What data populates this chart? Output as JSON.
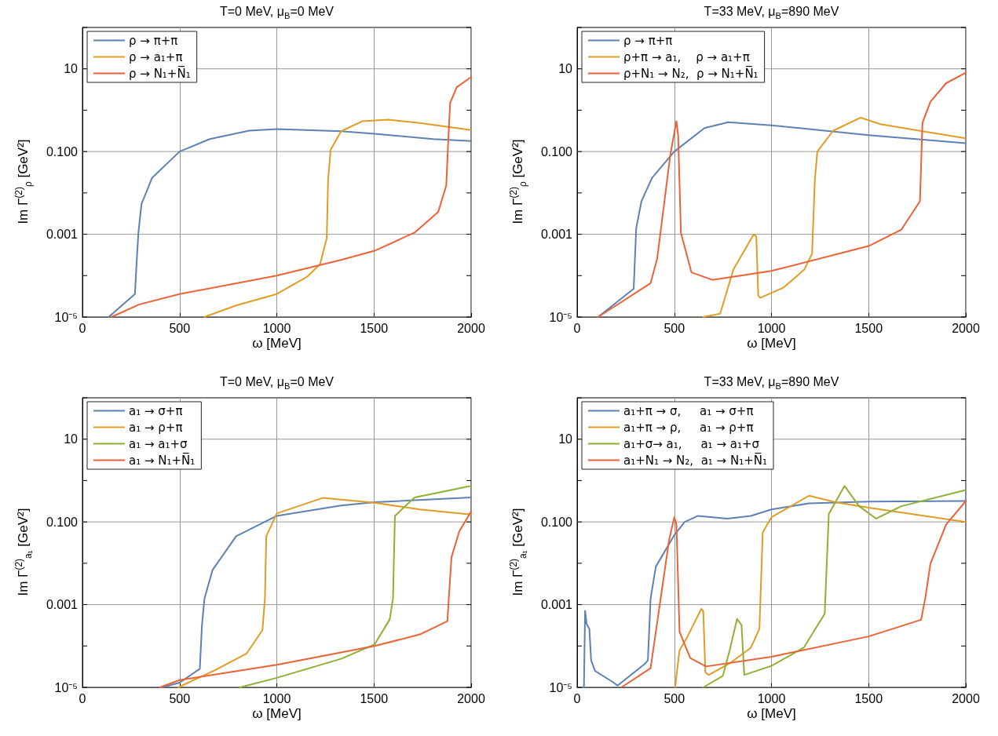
{
  "chart_data": [
    {
      "type": "line",
      "title": "T=0 MeV, μ$_{B}$=0 MeV",
      "xlabel": "ω [MeV]",
      "ylabel": "Im Γ$^{(2)}$$_{ρ}$ [GeV²]",
      "xlim": [
        0,
        2000
      ],
      "xticks": [
        0,
        500,
        1000,
        1500,
        2000
      ],
      "ylim": [
        1e-05,
        100
      ],
      "yticks": [
        {
          "value": 1e-05,
          "label": "10⁻⁵"
        },
        {
          "value": 0.0001,
          "label": null
        },
        {
          "value": 0.001,
          "label": "0.001"
        },
        {
          "value": 0.01,
          "label": null
        },
        {
          "value": 0.1,
          "label": "0.100"
        },
        {
          "value": 1,
          "label": null
        },
        {
          "value": 10,
          "label": "10"
        },
        {
          "value": 100,
          "label": null
        }
      ],
      "log": true,
      "grid": true,
      "legend": "top left",
      "marker": "none",
      "series": [
        {
          "name": "ρ → π+π",
          "color": "#5e81b5",
          "x": [
            135,
            270,
            280,
            288,
            304,
            358,
            500,
            655,
            858,
            1000,
            1331,
            1504,
            1804,
            2000
          ],
          "values": [
            1e-05,
            3.6e-05,
            0.00026,
            0.0011,
            0.0054,
            0.023,
            0.1,
            0.2,
            0.32,
            0.35,
            0.31,
            0.27,
            0.2,
            0.18
          ]
        },
        {
          "name": "ρ → a₁+π",
          "color": "#e19c24",
          "x": [
            628,
            791,
            1000,
            1155,
            1223,
            1257,
            1264,
            1277,
            1331,
            1439,
            1574,
            1736,
            2000
          ],
          "values": [
            1e-05,
            1.9e-05,
            3.6e-05,
            9.3e-05,
            0.00019,
            0.00081,
            0.02,
            0.11,
            0.31,
            0.54,
            0.59,
            0.49,
            0.33
          ]
        },
        {
          "name": "ρ → N₁+N̅₁",
          "color": "#eb6235",
          "x": [
            149,
            291,
            500,
            1000,
            1331,
            1504,
            1709,
            1831,
            1872,
            1882,
            1892,
            1926,
            2000
          ],
          "values": [
            1e-05,
            2e-05,
            3.6e-05,
            0.0001,
            0.00024,
            0.0004,
            0.0011,
            0.0035,
            0.015,
            0.17,
            1.5,
            3.6,
            6.3
          ]
        }
      ]
    },
    {
      "type": "line",
      "title": "T=33 MeV, μ$_{B}$=890 MeV",
      "xlabel": "ω [MeV]",
      "ylabel": "Im Γ$^{(2)}$$_{ρ}$ [GeV²]",
      "xlim": [
        0,
        2000
      ],
      "xticks": [
        0,
        500,
        1000,
        1500,
        2000
      ],
      "ylim": [
        1e-05,
        100
      ],
      "yticks": [
        {
          "value": 1e-05,
          "label": "10⁻⁵"
        },
        {
          "value": 0.0001,
          "label": null
        },
        {
          "value": 0.001,
          "label": "0.001"
        },
        {
          "value": 0.01,
          "label": null
        },
        {
          "value": 0.1,
          "label": "0.100"
        },
        {
          "value": 1,
          "label": null
        },
        {
          "value": 10,
          "label": "10"
        },
        {
          "value": 100,
          "label": null
        }
      ],
      "log": true,
      "grid": true,
      "legend": "top left",
      "marker": "none",
      "series": [
        {
          "name": "ρ → π+π",
          "color": "#5e81b5",
          "x": [
            108,
            291,
            304,
            331,
            385,
            500,
            655,
            777,
            1000,
            1500,
            2000
          ],
          "values": [
            1e-05,
            4.8e-05,
            0.0014,
            0.0063,
            0.023,
            0.1,
            0.37,
            0.51,
            0.43,
            0.25,
            0.16
          ]
        },
        {
          "name": "ρ+π → a₁,    ρ → a₁+π",
          "color": "#e19c24",
          "x": [
            649,
            736,
            804,
            909,
            922,
            932,
            942,
            1061,
            1169,
            1209,
            1223,
            1236,
            1318,
            1459,
            1561,
            1777,
            2000
          ],
          "values": [
            1e-05,
            1.2e-05,
            0.00014,
            0.001,
            0.00087,
            3.3e-05,
            2.9e-05,
            5.1e-05,
            0.00014,
            0.00034,
            0.02,
            0.1,
            0.32,
            0.66,
            0.46,
            0.31,
            0.21
          ]
        },
        {
          "name": "ρ+N₁ → N₂,  ρ → N₁+N̅₁",
          "color": "#eb6235",
          "x": [
            108,
            378,
            412,
            480,
            511,
            520,
            534,
            588,
            696,
            1000,
            1500,
            1669,
            1764,
            1777,
            1818,
            1899,
            2000
          ],
          "values": [
            1e-05,
            6.6e-05,
            0.00026,
            0.087,
            0.54,
            0.24,
            0.0011,
            0.00012,
            7.9e-05,
            0.00013,
            0.00052,
            0.0013,
            0.0063,
            0.5,
            1.6,
            4.5,
            8.1
          ]
        }
      ]
    },
    {
      "type": "line",
      "title": "T=0 MeV, μ$_{B}$=0 MeV",
      "xlabel": "ω [MeV]",
      "ylabel": "Im Γ$^{(2)}$$_{a₁}$ [GeV²]",
      "xlim": [
        0,
        2000
      ],
      "xticks": [
        0,
        500,
        1000,
        1500,
        2000
      ],
      "ylim": [
        1e-05,
        100
      ],
      "yticks": [
        {
          "value": 1e-05,
          "label": "10⁻⁵"
        },
        {
          "value": 0.0001,
          "label": null
        },
        {
          "value": 0.001,
          "label": "0.001"
        },
        {
          "value": 0.01,
          "label": null
        },
        {
          "value": 0.1,
          "label": "0.100"
        },
        {
          "value": 1,
          "label": null
        },
        {
          "value": 10,
          "label": "10"
        },
        {
          "value": 100,
          "label": null
        }
      ],
      "log": true,
      "grid": true,
      "legend": "top left",
      "marker": "none",
      "series": [
        {
          "name": "a₁ → σ+π",
          "color": "#5e81b5",
          "x": [
            412,
            500,
            604,
            615,
            628,
            669,
            791,
            1000,
            1331,
            1504,
            2000
          ],
          "values": [
            1e-05,
            1.3e-05,
            2.8e-05,
            0.00032,
            0.0014,
            0.0068,
            0.045,
            0.14,
            0.25,
            0.3,
            0.39
          ]
        },
        {
          "name": "a₁ → ρ+π",
          "color": "#e19c24",
          "x": [
            493,
            682,
            845,
            926,
            939,
            946,
            1000,
            1236,
            1504,
            1736,
            2000
          ],
          "values": [
            1e-05,
            2.6e-05,
            6.6e-05,
            0.00024,
            0.0014,
            0.045,
            0.16,
            0.38,
            0.29,
            0.2,
            0.15
          ]
        },
        {
          "name": "a₁ → a₁+σ",
          "color": "#8fb032",
          "x": [
            811,
            1000,
            1331,
            1504,
            1581,
            1598,
            1608,
            1709,
            2000
          ],
          "values": [
            1e-05,
            1.7e-05,
            4.9e-05,
            0.00011,
            0.00044,
            0.0014,
            0.14,
            0.39,
            0.74
          ]
        },
        {
          "name": "a₁ → N₁+N̅₁",
          "color": "#eb6235",
          "x": [
            399,
            500,
            1000,
            1504,
            1736,
            1878,
            1885,
            1899,
            1939,
            2000
          ],
          "values": [
            1e-05,
            1.5e-05,
            3.5e-05,
            0.0001,
            0.00019,
            0.0004,
            0.0014,
            0.014,
            0.059,
            0.18
          ]
        }
      ]
    },
    {
      "type": "line",
      "title": "T=33 MeV, μ$_{B}$=890 MeV",
      "xlabel": "ω [MeV]",
      "ylabel": "Im Γ$^{(2)}$$_{a₁}$ [GeV²]",
      "xlim": [
        0,
        2000
      ],
      "xticks": [
        0,
        500,
        1000,
        1500,
        2000
      ],
      "ylim": [
        1e-05,
        100
      ],
      "yticks": [
        {
          "value": 1e-05,
          "label": "10⁻⁵"
        },
        {
          "value": 0.0001,
          "label": null
        },
        {
          "value": 0.001,
          "label": "0.001"
        },
        {
          "value": 0.01,
          "label": null
        },
        {
          "value": 0.1,
          "label": "0.100"
        },
        {
          "value": 1,
          "label": null
        },
        {
          "value": 10,
          "label": "10"
        },
        {
          "value": 100,
          "label": null
        }
      ],
      "log": true,
      "grid": true,
      "legend": "top left",
      "marker": "none",
      "series": [
        {
          "name": "a₁+π → σ,     a₁ → σ+π",
          "color": "#5e81b5",
          "x": [
            35,
            41,
            49,
            63,
            72,
            92,
            188,
            208,
            351,
            364,
            378,
            405,
            500,
            554,
            622,
            772,
            894,
            1000,
            1193,
            1500,
            2000
          ],
          "values": [
            1e-05,
            0.00071,
            0.00034,
            0.00026,
            4.5e-05,
            2.5e-05,
            1.3e-05,
            1.1e-05,
            3.8e-05,
            4.5e-05,
            0.0014,
            0.0083,
            0.048,
            0.1,
            0.14,
            0.12,
            0.14,
            0.2,
            0.28,
            0.31,
            0.32
          ]
        },
        {
          "name": "a₁+π → ρ,     a₁ → ρ+π",
          "color": "#e19c24",
          "x": [
            504,
            527,
            568,
            639,
            649,
            660,
            677,
            785,
            894,
            938,
            955,
            1000,
            1193,
            1329,
            1500,
            2000
          ],
          "values": [
            1e-05,
            7.9e-05,
            0.00017,
            0.00079,
            0.00069,
            2.3e-05,
            2e-05,
            3.8e-05,
            9.1e-05,
            0.00026,
            0.056,
            0.13,
            0.43,
            0.3,
            0.22,
            0.1
          ]
        },
        {
          "name": "a₁+σ→ a₁,     a₁ → a₁+σ",
          "color": "#8fb032",
          "x": [
            649,
            750,
            785,
            823,
            846,
            860,
            1000,
            1166,
            1274,
            1295,
            1376,
            1451,
            1539,
            1668,
            2000
          ],
          "values": [
            1e-05,
            1.9e-05,
            7.9e-05,
            0.00045,
            0.00032,
            2e-05,
            3.3e-05,
            9.1e-05,
            0.0006,
            0.155,
            0.74,
            0.24,
            0.12,
            0.24,
            0.59
          ]
        },
        {
          "name": "a₁+N₁ → N₂,  a₁ → N₁+N̅₁",
          "color": "#eb6235",
          "x": [
            228,
            378,
            473,
            500,
            511,
            527,
            582,
            663,
            1000,
            1500,
            1770,
            1791,
            1818,
            1899,
            2000
          ],
          "values": [
            1e-05,
            2.9e-05,
            0.036,
            0.13,
            0.087,
            0.00022,
            5.1e-05,
            3.2e-05,
            5.5e-05,
            0.00017,
            0.00043,
            0.0014,
            0.0098,
            0.087,
            0.32
          ]
        }
      ]
    }
  ]
}
